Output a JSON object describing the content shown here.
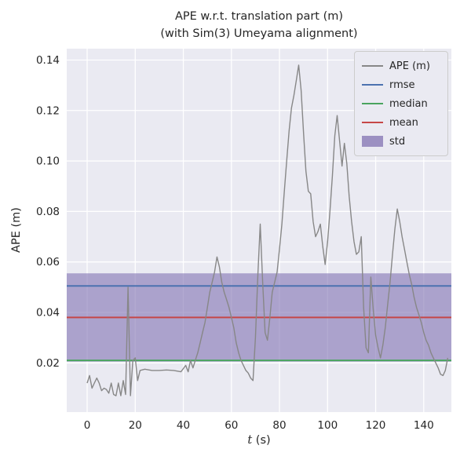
{
  "chart_data": {
    "type": "line",
    "title_lines": [
      "APE w.r.t. translation part (m)",
      "(with Sim(3) Umeyama alignment)"
    ],
    "xlabel": "t (s)",
    "xlabel_var": "t",
    "xlabel_rest": " (s)",
    "ylabel": "APE (m)",
    "xlim": [
      -8.5,
      151.5
    ],
    "ylim": [
      0.0005,
      0.1445
    ],
    "xticks": [
      0,
      20,
      40,
      60,
      80,
      100,
      120,
      140
    ],
    "yticks": [
      0.02,
      0.04,
      0.06,
      0.08,
      0.1,
      0.12,
      0.14
    ],
    "grid": true,
    "legend_position": "upper right",
    "axes_bg": "#EAEAF2",
    "grid_color": "#FFFFFF",
    "std_band_color": "rgba(129,114,178,0.6)",
    "stats": {
      "rmse": 0.0505,
      "mean": 0.038,
      "median": 0.021,
      "std": 0.0175,
      "std_band": [
        0.0205,
        0.0555
      ]
    },
    "stat_lines": [
      {
        "name": "rmse",
        "value": 0.0505,
        "color": "#4C72B0"
      },
      {
        "name": "median",
        "value": 0.021,
        "color": "#4AA45F"
      },
      {
        "name": "mean",
        "value": 0.038,
        "color": "#C64747"
      }
    ],
    "series": [
      {
        "name": "APE (m)",
        "color": "#878787",
        "points": [
          [
            0,
            0.012
          ],
          [
            1,
            0.015
          ],
          [
            2,
            0.01
          ],
          [
            3,
            0.012
          ],
          [
            4,
            0.014
          ],
          [
            5,
            0.012
          ],
          [
            6,
            0.009
          ],
          [
            7,
            0.01
          ],
          [
            8,
            0.0095
          ],
          [
            9,
            0.008
          ],
          [
            10,
            0.012
          ],
          [
            11,
            0.0075
          ],
          [
            12,
            0.007
          ],
          [
            13,
            0.012
          ],
          [
            14,
            0.007
          ],
          [
            15,
            0.013
          ],
          [
            16,
            0.0075
          ],
          [
            17,
            0.05
          ],
          [
            18,
            0.007
          ],
          [
            19,
            0.021
          ],
          [
            20,
            0.022
          ],
          [
            21,
            0.013
          ],
          [
            22,
            0.017
          ],
          [
            24,
            0.0175
          ],
          [
            27,
            0.017
          ],
          [
            30,
            0.017
          ],
          [
            33,
            0.0172
          ],
          [
            36,
            0.017
          ],
          [
            39,
            0.0165
          ],
          [
            41,
            0.019
          ],
          [
            42,
            0.0165
          ],
          [
            43,
            0.021
          ],
          [
            44,
            0.018
          ],
          [
            45,
            0.021
          ],
          [
            46,
            0.024
          ],
          [
            47,
            0.028
          ],
          [
            48,
            0.032
          ],
          [
            49,
            0.036
          ],
          [
            50,
            0.042
          ],
          [
            51,
            0.048
          ],
          [
            52,
            0.052
          ],
          [
            53,
            0.056
          ],
          [
            54,
            0.062
          ],
          [
            55,
            0.058
          ],
          [
            56,
            0.052
          ],
          [
            57,
            0.048
          ],
          [
            58,
            0.045
          ],
          [
            59,
            0.042
          ],
          [
            60,
            0.038
          ],
          [
            61,
            0.034
          ],
          [
            62,
            0.028
          ],
          [
            63,
            0.024
          ],
          [
            64,
            0.021
          ],
          [
            65,
            0.019
          ],
          [
            66,
            0.017
          ],
          [
            67,
            0.016
          ],
          [
            68,
            0.014
          ],
          [
            69,
            0.013
          ],
          [
            70,
            0.03
          ],
          [
            71,
            0.055
          ],
          [
            72,
            0.075
          ],
          [
            73,
            0.052
          ],
          [
            74,
            0.032
          ],
          [
            75,
            0.029
          ],
          [
            76,
            0.038
          ],
          [
            77,
            0.048
          ],
          [
            78,
            0.052
          ],
          [
            79,
            0.056
          ],
          [
            80,
            0.065
          ],
          [
            81,
            0.075
          ],
          [
            82,
            0.088
          ],
          [
            83,
            0.1
          ],
          [
            84,
            0.112
          ],
          [
            85,
            0.121
          ],
          [
            86,
            0.126
          ],
          [
            87,
            0.132
          ],
          [
            88,
            0.138
          ],
          [
            89,
            0.128
          ],
          [
            90,
            0.111
          ],
          [
            91,
            0.096
          ],
          [
            92,
            0.088
          ],
          [
            93,
            0.087
          ],
          [
            94,
            0.076
          ],
          [
            95,
            0.07
          ],
          [
            96,
            0.072
          ],
          [
            97,
            0.075
          ],
          [
            98,
            0.066
          ],
          [
            99,
            0.059
          ],
          [
            100,
            0.068
          ],
          [
            101,
            0.08
          ],
          [
            102,
            0.094
          ],
          [
            103,
            0.11
          ],
          [
            104,
            0.118
          ],
          [
            105,
            0.108
          ],
          [
            106,
            0.098
          ],
          [
            107,
            0.107
          ],
          [
            108,
            0.099
          ],
          [
            109,
            0.086
          ],
          [
            110,
            0.076
          ],
          [
            111,
            0.068
          ],
          [
            112,
            0.063
          ],
          [
            113,
            0.064
          ],
          [
            114,
            0.07
          ],
          [
            115,
            0.042
          ],
          [
            116,
            0.026
          ],
          [
            117,
            0.024
          ],
          [
            118,
            0.054
          ],
          [
            119,
            0.041
          ],
          [
            120,
            0.031
          ],
          [
            121,
            0.026
          ],
          [
            122,
            0.022
          ],
          [
            123,
            0.027
          ],
          [
            124,
            0.034
          ],
          [
            125,
            0.043
          ],
          [
            126,
            0.052
          ],
          [
            127,
            0.063
          ],
          [
            128,
            0.073
          ],
          [
            129,
            0.081
          ],
          [
            130,
            0.076
          ],
          [
            131,
            0.07
          ],
          [
            132,
            0.065
          ],
          [
            133,
            0.06
          ],
          [
            134,
            0.055
          ],
          [
            135,
            0.051
          ],
          [
            136,
            0.046
          ],
          [
            137,
            0.042
          ],
          [
            138,
            0.039
          ],
          [
            139,
            0.036
          ],
          [
            140,
            0.032
          ],
          [
            141,
            0.029
          ],
          [
            142,
            0.027
          ],
          [
            143,
            0.024
          ],
          [
            144,
            0.022
          ],
          [
            145,
            0.02
          ],
          [
            146,
            0.018
          ],
          [
            147,
            0.0155
          ],
          [
            148,
            0.015
          ],
          [
            149,
            0.017
          ],
          [
            150,
            0.022
          ]
        ]
      }
    ]
  },
  "legend": {
    "entries": [
      {
        "label": "APE (m)",
        "kind": "line",
        "color": "#878787"
      },
      {
        "label": "rmse",
        "kind": "line",
        "color": "#4C72B0"
      },
      {
        "label": "median",
        "kind": "line",
        "color": "#4AA45F"
      },
      {
        "label": "mean",
        "kind": "line",
        "color": "#C64747"
      },
      {
        "label": "std",
        "kind": "patch",
        "color": "rgba(129,114,178,0.75)"
      }
    ]
  }
}
